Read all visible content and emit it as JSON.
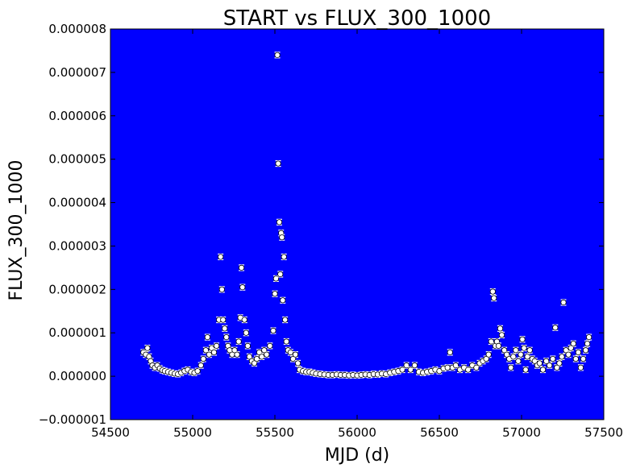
{
  "chart_data": {
    "type": "scatter",
    "title": "START vs FLUX_300_1000",
    "xlabel": "MJD (d)",
    "ylabel": "FLUX_300_1000",
    "xlim": [
      54500,
      57500
    ],
    "ylim": [
      -1e-06,
      8e-06
    ],
    "x_ticks": [
      54500,
      55000,
      55500,
      56000,
      56500,
      57000,
      57500
    ],
    "x_tick_labels": [
      "54500",
      "55000",
      "55500",
      "56000",
      "56500",
      "57000",
      "57500"
    ],
    "y_ticks": [
      -1e-06,
      0,
      1e-06,
      2e-06,
      3e-06,
      4e-06,
      5e-06,
      6e-06,
      7e-06,
      8e-06
    ],
    "y_tick_labels": [
      "−0.000001",
      "0.000000",
      "0.000001",
      "0.000002",
      "0.000003",
      "0.000004",
      "0.000005",
      "0.000006",
      "0.000007",
      "0.000008"
    ],
    "grid": false,
    "colors": {
      "plot_background": "#0000ff",
      "marker_face": "#ffffff",
      "marker_edge": "#000000",
      "error_bar": "#ffffff"
    },
    "series": [
      {
        "points": [
          [
            54700,
            5.5e-07
          ],
          [
            54715,
            5e-07
          ],
          [
            54725,
            6.5e-07
          ],
          [
            54735,
            4.5e-07
          ],
          [
            54745,
            3.5e-07
          ],
          [
            54755,
            2.5e-07
          ],
          [
            54770,
            2e-07
          ],
          [
            54785,
            2.5e-07
          ],
          [
            54800,
            1.8e-07
          ],
          [
            54815,
            1.4e-07
          ],
          [
            54830,
            1.2e-07
          ],
          [
            54850,
            1e-07
          ],
          [
            54870,
            8e-08
          ],
          [
            54890,
            6e-08
          ],
          [
            54910,
            5e-08
          ],
          [
            54930,
            8e-08
          ],
          [
            54950,
            1.2e-07
          ],
          [
            54970,
            1.5e-07
          ],
          [
            54990,
            1e-07
          ],
          [
            55010,
            8e-08
          ],
          [
            55030,
            1.2e-07
          ],
          [
            55050,
            2.5e-07
          ],
          [
            55065,
            4e-07
          ],
          [
            55080,
            6e-07
          ],
          [
            55090,
            9e-07
          ],
          [
            55100,
            5e-07
          ],
          [
            55115,
            6.5e-07
          ],
          [
            55130,
            5.5e-07
          ],
          [
            55145,
            7e-07
          ],
          [
            55160,
            1.3e-06
          ],
          [
            55170,
            2.75e-06
          ],
          [
            55178,
            2e-06
          ],
          [
            55185,
            1.3e-06
          ],
          [
            55195,
            1.1e-06
          ],
          [
            55205,
            9e-07
          ],
          [
            55215,
            7e-07
          ],
          [
            55225,
            6e-07
          ],
          [
            55240,
            5e-07
          ],
          [
            55255,
            6e-07
          ],
          [
            55270,
            5e-07
          ],
          [
            55280,
            8e-07
          ],
          [
            55290,
            1.35e-06
          ],
          [
            55297,
            2.5e-06
          ],
          [
            55303,
            2.05e-06
          ],
          [
            55315,
            1.3e-06
          ],
          [
            55325,
            1e-06
          ],
          [
            55335,
            7e-07
          ],
          [
            55345,
            4.5e-07
          ],
          [
            55360,
            3.5e-07
          ],
          [
            55375,
            3e-07
          ],
          [
            55390,
            4e-07
          ],
          [
            55405,
            5.5e-07
          ],
          [
            55420,
            4.5e-07
          ],
          [
            55435,
            6e-07
          ],
          [
            55450,
            5e-07
          ],
          [
            55470,
            7e-07
          ],
          [
            55490,
            1.05e-06
          ],
          [
            55500,
            1.9e-06
          ],
          [
            55507,
            2.25e-06
          ],
          [
            55515,
            7.4e-06
          ],
          [
            55520,
            4.9e-06
          ],
          [
            55527,
            3.55e-06
          ],
          [
            55533,
            2.35e-06
          ],
          [
            55538,
            3.3e-06
          ],
          [
            55543,
            3.2e-06
          ],
          [
            55548,
            1.75e-06
          ],
          [
            55555,
            2.75e-06
          ],
          [
            55562,
            1.3e-06
          ],
          [
            55570,
            8e-07
          ],
          [
            55580,
            6e-07
          ],
          [
            55595,
            5.5e-07
          ],
          [
            55610,
            4e-07
          ],
          [
            55625,
            5e-07
          ],
          [
            55640,
            3e-07
          ],
          [
            55650,
            1.5e-07
          ],
          [
            55670,
            1.2e-07
          ],
          [
            55690,
            1e-07
          ],
          [
            55710,
            1e-07
          ],
          [
            55730,
            8e-08
          ],
          [
            55750,
            6e-08
          ],
          [
            55775,
            5e-08
          ],
          [
            55800,
            4e-08
          ],
          [
            55825,
            3e-08
          ],
          [
            55850,
            3e-08
          ],
          [
            55875,
            4e-08
          ],
          [
            55900,
            3e-08
          ],
          [
            55925,
            3e-08
          ],
          [
            55950,
            2e-08
          ],
          [
            55975,
            3e-08
          ],
          [
            56000,
            2e-08
          ],
          [
            56025,
            3e-08
          ],
          [
            56050,
            4e-08
          ],
          [
            56075,
            3e-08
          ],
          [
            56100,
            5e-08
          ],
          [
            56125,
            4e-08
          ],
          [
            56150,
            6e-08
          ],
          [
            56175,
            5e-08
          ],
          [
            56200,
            8e-08
          ],
          [
            56225,
            1e-07
          ],
          [
            56250,
            1.2e-07
          ],
          [
            56275,
            1.5e-07
          ],
          [
            56300,
            2.5e-07
          ],
          [
            56325,
            1.5e-07
          ],
          [
            56350,
            2.5e-07
          ],
          [
            56375,
            1e-07
          ],
          [
            56400,
            8e-08
          ],
          [
            56425,
            1e-07
          ],
          [
            56450,
            1.2e-07
          ],
          [
            56475,
            1.5e-07
          ],
          [
            56500,
            1.2e-07
          ],
          [
            56525,
            1.8e-07
          ],
          [
            56550,
            2e-07
          ],
          [
            56565,
            5.5e-07
          ],
          [
            56580,
            2e-07
          ],
          [
            56600,
            2.5e-07
          ],
          [
            56625,
            1.5e-07
          ],
          [
            56650,
            2e-07
          ],
          [
            56675,
            1.5e-07
          ],
          [
            56700,
            2.5e-07
          ],
          [
            56725,
            2e-07
          ],
          [
            56745,
            3e-07
          ],
          [
            56765,
            3.5e-07
          ],
          [
            56785,
            4e-07
          ],
          [
            56800,
            5e-07
          ],
          [
            56815,
            8e-07
          ],
          [
            56825,
            1.95e-06
          ],
          [
            56832,
            1.8e-06
          ],
          [
            56840,
            7e-07
          ],
          [
            56850,
            8e-07
          ],
          [
            56860,
            7e-07
          ],
          [
            56870,
            1.1e-06
          ],
          [
            56880,
            9.5e-07
          ],
          [
            56895,
            6e-07
          ],
          [
            56910,
            5e-07
          ],
          [
            56925,
            4e-07
          ],
          [
            56935,
            2e-07
          ],
          [
            56950,
            4.5e-07
          ],
          [
            56965,
            6e-07
          ],
          [
            56980,
            3.5e-07
          ],
          [
            56995,
            5e-07
          ],
          [
            57005,
            8.5e-07
          ],
          [
            57015,
            6.5e-07
          ],
          [
            57025,
            1.5e-07
          ],
          [
            57035,
            4.5e-07
          ],
          [
            57050,
            6e-07
          ],
          [
            57065,
            4e-07
          ],
          [
            57080,
            3.5e-07
          ],
          [
            57095,
            2.5e-07
          ],
          [
            57110,
            3e-07
          ],
          [
            57130,
            1.5e-07
          ],
          [
            57150,
            3.5e-07
          ],
          [
            57170,
            2.5e-07
          ],
          [
            57190,
            4e-07
          ],
          [
            57205,
            1.12e-06
          ],
          [
            57215,
            2e-07
          ],
          [
            57230,
            3e-07
          ],
          [
            57245,
            4.5e-07
          ],
          [
            57255,
            1.7e-06
          ],
          [
            57270,
            6e-07
          ],
          [
            57285,
            5e-07
          ],
          [
            57300,
            6.5e-07
          ],
          [
            57315,
            7.5e-07
          ],
          [
            57330,
            4e-07
          ],
          [
            57345,
            5.5e-07
          ],
          [
            57360,
            2e-07
          ],
          [
            57375,
            4e-07
          ],
          [
            57390,
            6e-07
          ],
          [
            57400,
            7.5e-07
          ],
          [
            57410,
            9e-07
          ]
        ]
      }
    ]
  }
}
